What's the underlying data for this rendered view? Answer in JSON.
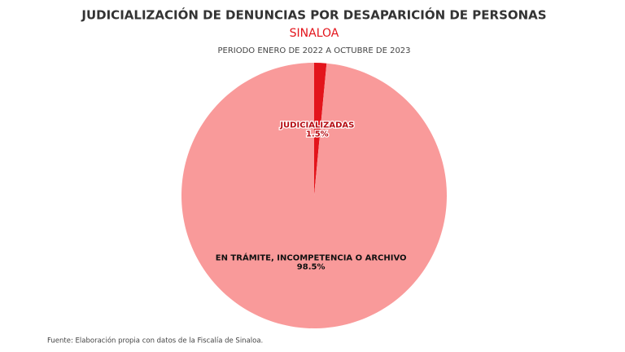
{
  "chart_data": {
    "type": "pie",
    "title": "JUDICIALIZACIÓN DE DENUNCIAS POR DESAPARICIÓN DE PERSONAS",
    "subtitle": "SINALOA",
    "period": "PERIODO ENERO DE 2022 A OCTUBRE DE 2023",
    "source": "Fuente: Elaboración propia con datos de la Fiscalía de Sinaloa.",
    "categories": [
      "JUDICIALIZADAS",
      "EN TRÁMITE, INCOMPETENCIA O ARCHIVO"
    ],
    "values": [
      1.5,
      98.5
    ],
    "value_labels": [
      "1.5%",
      "98.5%"
    ],
    "colors": [
      "#e3141b",
      "#f99a9a"
    ]
  }
}
